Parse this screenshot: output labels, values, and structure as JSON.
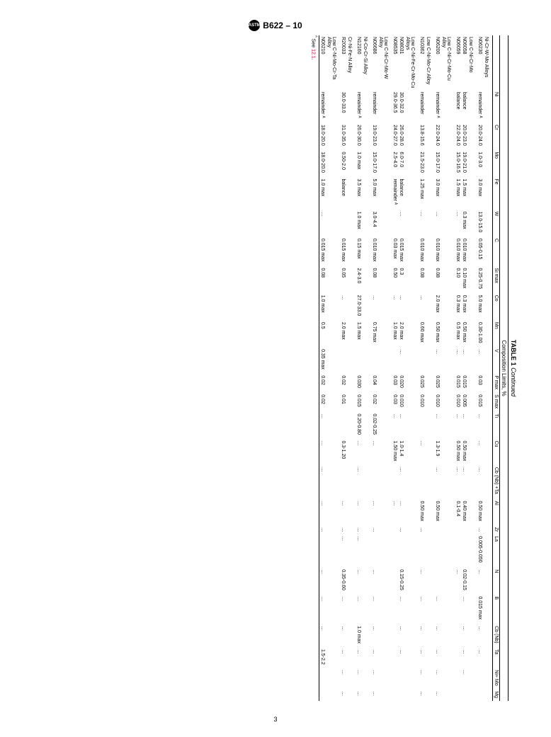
{
  "header": {
    "logo_text": "ASTM",
    "spec": "B622 – 10"
  },
  "page_number": "3",
  "table": {
    "caption_bold": "TABLE 1",
    "caption_rest": " Continued",
    "subcaption": "Composition Limits, %",
    "columns": [
      "",
      "Ni",
      "Cr",
      "Mo",
      "Fe",
      "W",
      "C",
      "Si max",
      "Co",
      "Mn",
      "V",
      "P max",
      "S max",
      "Ti",
      "Cu",
      "Cb (Nb) +Ta",
      "Al",
      "Zr",
      "La",
      "N",
      "B",
      "Cb (Nb)",
      "Ta",
      "Ni+ Mo",
      "Mg"
    ],
    "rows": [
      {
        "section": true,
        "cells": [
          "Ni-Cr-W-Mo Alloys"
        ]
      },
      {
        "cells": [
          "N06230",
          "remainder ᴬ",
          "20.0-24.0",
          "1.0-3.0",
          "3.0 max",
          "13.0-15.0",
          "0.05-0.15",
          "0.25-0.75",
          "5.0 max",
          "0.30-1.00",
          "…",
          "0.03",
          "0.015",
          "…",
          "…",
          "…",
          "0.50 max",
          "…",
          "0.005-0.050",
          "…",
          "0.015 max",
          "…",
          "…",
          "",
          ""
        ]
      },
      {
        "section": true,
        "cells": [
          "Low C-Ni-Cr-Mo"
        ]
      },
      {
        "cells": [
          "N06058",
          "balance",
          "20.0-23.0",
          "19.0-21.0",
          "1.5 max",
          "0.3 max",
          "0.010 max",
          "0.10 max",
          "0.3 max",
          "0.50 max",
          "…",
          "0.015",
          "0.005",
          "…",
          "0.50 max",
          "…",
          "0.40 max",
          "",
          "",
          "0.02-0.15",
          "…",
          "…",
          "…",
          "…",
          ""
        ]
      },
      {
        "cells": [
          "N06059",
          "balance",
          "22.0-24.0",
          "15.0-16.5",
          "1.5 max",
          "…",
          "0.010 max",
          "0.10",
          "0.3 max",
          "0.5 max",
          "…",
          "0.015",
          "0.010",
          "…",
          "0.50 max",
          "…",
          "0.1-0.4",
          "",
          "",
          "…",
          "",
          "",
          "",
          "",
          ""
        ]
      },
      {
        "section": true,
        "cells": [
          "Low C-Ni-Cr-Mo-Cu Alloy"
        ]
      },
      {
        "cells": [
          "N06200",
          "remainder ᴬ",
          "22.0-24.0",
          "15.0-17.0",
          "3.0 max",
          "…",
          "0.010 max",
          "0.08",
          "2.0 max",
          "0.50 max",
          "…",
          "0.025",
          "0.010",
          "…",
          "1.3-1.9",
          "…",
          "0.50 max",
          "",
          "",
          "",
          "…",
          "…",
          "…",
          "…",
          "…"
        ]
      },
      {
        "section": true,
        "cells": [
          "Low C-Ni-Mo-Cr Alloy"
        ]
      },
      {
        "cells": [
          "N10362",
          "remainder",
          "13.8-15.6",
          "21.5-23.0",
          "1.25 max",
          "…",
          "0.010 max",
          "0.08",
          "…",
          "0.60 max",
          "",
          "0.025",
          "0.010",
          "",
          "…",
          "",
          "0.50 max",
          "…",
          "",
          "…",
          "…",
          "…",
          "…",
          "…",
          "…"
        ]
      },
      {
        "section": true,
        "cells": [
          "Low C-Ni-Fe-Cr-Mo-Cu Alloys"
        ]
      },
      {
        "cells": [
          "N08031",
          "30.0-32.0",
          "26.0-28.0",
          "6.0-7.0",
          "balance",
          "…",
          "0.015 max",
          "0.3",
          "…",
          "2.0 max",
          "…",
          "0.020",
          "0.010",
          "…",
          "1.0-1.4",
          "…",
          "…",
          "…",
          "",
          "0.15-0.25",
          "…",
          "…",
          "…",
          "",
          ""
        ]
      },
      {
        "cells": [
          "N08535",
          "29.0-36.5",
          "24.0-27.0",
          "2.5-4.0",
          "remainder ᴬ",
          "",
          "0.03 max",
          "0.50",
          "…",
          "1.0 max",
          "",
          "0.03",
          "0.03",
          "…",
          "1.50 max",
          "",
          "…",
          "",
          "",
          "",
          "",
          "",
          "",
          "",
          ""
        ]
      },
      {
        "section": true,
        "cells": [
          "Low C-Ni-Cr-Mo-W Alloy"
        ]
      },
      {
        "cells": [
          "N06686",
          "remainder",
          "19.0-23.0",
          "15.0-17.0",
          "5.0 max",
          "3.0-4.4",
          "0.010 max",
          "0.08",
          "…",
          "0.75 max",
          "",
          "0.04",
          "0.02",
          "0.02-0.25",
          "…",
          "",
          "…",
          "…",
          "",
          "…",
          "…",
          "…",
          "…",
          "…",
          "…"
        ]
      },
      {
        "section": true,
        "cells": [
          "Ni-Co-Cr-Si Alloy"
        ]
      },
      {
        "cells": [
          "N12160",
          "remainder ᴬ",
          "26.0-30.0",
          "1.0 max",
          "3.5 max",
          "1.0 max",
          "0.15 max",
          "2.4-3.0",
          "27.0-33.0",
          "1.5 max",
          "",
          "0.030",
          "0.015",
          "0.20-0.80",
          "…",
          "…",
          "…",
          "…",
          "…",
          "…",
          "…",
          "1.0 max",
          "…",
          "…",
          "…"
        ]
      },
      {
        "section": true,
        "cells": [
          "Cr-Ni-Fe-N Alloy"
        ]
      },
      {
        "cells": [
          "R20033",
          "30.0-33.0",
          "31.0-35.0",
          "0.50-2.0",
          "balance",
          "",
          "0.015 max",
          "0.05",
          "…",
          "2.0 max",
          "",
          "0.02",
          "0.01",
          "",
          "0.3-1.20",
          "",
          "…",
          "…",
          "…",
          "0.35-0.60",
          "…",
          "…",
          "…",
          "…",
          "…"
        ]
      },
      {
        "section": true,
        "cells": [
          "Low C-Ni-Mo-Cr-Ta Alloy"
        ]
      },
      {
        "cells": [
          "N06210",
          "remainder ᴬ",
          "18.0-20.0",
          "18.0-20.0",
          "1.0 max",
          "…",
          "0.015 max",
          "0.08",
          "1.0 max",
          "0.5",
          "0.35 max",
          "0.02",
          "0.02",
          "…",
          "…",
          "…",
          "…",
          "…",
          "",
          "…",
          "…",
          "…",
          "1.5-2.2",
          "",
          ""
        ]
      }
    ],
    "footnote_marker": "ᴬ",
    "footnote_text": " See ",
    "footnote_ref": "12.1",
    "footnote_after": "."
  }
}
